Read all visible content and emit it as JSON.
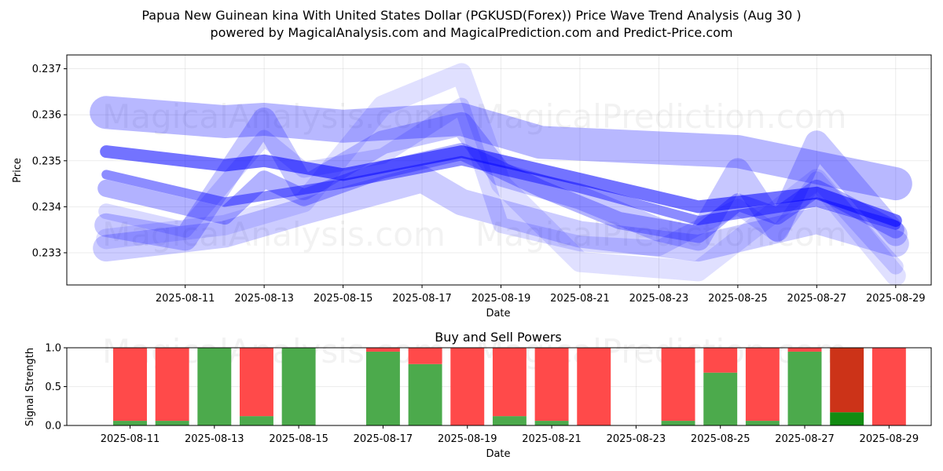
{
  "chart_data": [
    {
      "type": "line",
      "title_line1": "Papua New Guinean kina With United States Dollar (PGKUSD(Forex)) Price Wave Trend Analysis (Aug 30 )",
      "title_line2": "powered by MagicalAnalysis.com and MagicalPrediction.com and Predict-Price.com",
      "xlabel": "Date",
      "ylabel": "Price",
      "xlim": [
        "2025-08-08",
        "2025-08-29.9"
      ],
      "ylim": [
        0.2323,
        0.2373
      ],
      "x_ticks": [
        "2025-08-11",
        "2025-08-13",
        "2025-08-15",
        "2025-08-17",
        "2025-08-19",
        "2025-08-21",
        "2025-08-23",
        "2025-08-25",
        "2025-08-27",
        "2025-08-29"
      ],
      "y_ticks": [
        "0.233",
        "0.234",
        "0.235",
        "0.236",
        "0.237"
      ],
      "grid": true,
      "color": "#0000ff",
      "watermarks": [
        "MagicalAnalysis.com",
        "MagicalPrediction.com",
        "MagicalAnalysis.com",
        "MagicalPrediction.com"
      ],
      "series": [
        {
          "x": [
            "2025-08-09",
            "2025-08-12",
            "2025-08-13",
            "2025-08-15",
            "2025-08-18",
            "2025-08-20",
            "2025-08-25",
            "2025-08-29"
          ],
          "values": [
            0.23605,
            0.23585,
            0.2359,
            0.23575,
            0.2359,
            0.2354,
            0.2352,
            0.2345
          ],
          "width": 42,
          "opacity": 0.28
        },
        {
          "x": [
            "2025-08-09",
            "2025-08-12",
            "2025-08-13",
            "2025-08-15",
            "2025-08-18",
            "2025-08-21",
            "2025-08-24",
            "2025-08-27",
            "2025-08-29"
          ],
          "values": [
            0.2352,
            0.2349,
            0.235,
            0.2347,
            0.2352,
            0.2346,
            0.234,
            0.2343,
            0.2337
          ],
          "width": 16,
          "opacity": 0.55
        },
        {
          "x": [
            "2025-08-09",
            "2025-08-11",
            "2025-08-13",
            "2025-08-14",
            "2025-08-16",
            "2025-08-18",
            "2025-08-19",
            "2025-08-21",
            "2025-08-23",
            "2025-08-24",
            "2025-08-25",
            "2025-08-26",
            "2025-08-27",
            "2025-08-29"
          ],
          "values": [
            0.2336,
            0.2333,
            0.2359,
            0.2344,
            0.2354,
            0.2358,
            0.2347,
            0.2342,
            0.2335,
            0.2333,
            0.2348,
            0.2335,
            0.2354,
            0.2334
          ],
          "width": 30,
          "opacity": 0.22
        },
        {
          "x": [
            "2025-08-09",
            "2025-08-12",
            "2025-08-13",
            "2025-08-14",
            "2025-08-16",
            "2025-08-18",
            "2025-08-20",
            "2025-08-22",
            "2025-08-24",
            "2025-08-25",
            "2025-08-26",
            "2025-08-27",
            "2025-08-29"
          ],
          "values": [
            0.2344,
            0.2338,
            0.2346,
            0.2342,
            0.2348,
            0.2352,
            0.2344,
            0.2337,
            0.2334,
            0.2341,
            0.2338,
            0.2344,
            0.2335
          ],
          "width": 22,
          "opacity": 0.3
        },
        {
          "x": [
            "2025-08-09",
            "2025-08-12",
            "2025-08-14",
            "2025-08-17",
            "2025-08-18",
            "2025-08-21",
            "2025-08-24",
            "2025-08-27",
            "2025-08-29"
          ],
          "values": [
            0.2331,
            0.2334,
            0.2339,
            0.2346,
            0.2341,
            0.2334,
            0.2331,
            0.2337,
            0.2332
          ],
          "width": 34,
          "opacity": 0.2
        },
        {
          "x": [
            "2025-08-09",
            "2025-08-11",
            "2025-08-13",
            "2025-08-14",
            "2025-08-16",
            "2025-08-18",
            "2025-08-19",
            "2025-08-21",
            "2025-08-23",
            "2025-08-25",
            "2025-08-26",
            "2025-08-27",
            "2025-08-29"
          ],
          "values": [
            0.2339,
            0.2335,
            0.2355,
            0.2348,
            0.2351,
            0.2362,
            0.2336,
            0.2332,
            0.2331,
            0.234,
            0.2334,
            0.2346,
            0.2327
          ],
          "width": 20,
          "opacity": 0.15
        },
        {
          "x": [
            "2025-08-09",
            "2025-08-12",
            "2025-08-15",
            "2025-08-18",
            "2025-08-21",
            "2025-08-24",
            "2025-08-27",
            "2025-08-29"
          ],
          "values": [
            0.2347,
            0.2341,
            0.2345,
            0.235,
            0.2344,
            0.2337,
            0.2341,
            0.2336
          ],
          "width": 12,
          "opacity": 0.45
        },
        {
          "x": [
            "2025-08-09",
            "2025-08-12",
            "2025-08-14",
            "2025-08-16",
            "2025-08-18",
            "2025-08-19",
            "2025-08-21",
            "2025-08-24",
            "2025-08-27",
            "2025-08-29"
          ],
          "values": [
            0.2333,
            0.2336,
            0.2341,
            0.2362,
            0.2369,
            0.2345,
            0.2328,
            0.2326,
            0.2346,
            0.2325
          ],
          "width": 26,
          "opacity": 0.12
        }
      ]
    },
    {
      "type": "bar",
      "title": "Buy and Sell Powers",
      "xlabel": "Date",
      "ylabel": "Signal Strength",
      "xlim": [
        "2025-08-09.5",
        "2025-08-30"
      ],
      "ylim": [
        0,
        1.0
      ],
      "x_ticks": [
        "2025-08-11",
        "2025-08-13",
        "2025-08-15",
        "2025-08-17",
        "2025-08-19",
        "2025-08-21",
        "2025-08-23",
        "2025-08-25",
        "2025-08-27",
        "2025-08-29"
      ],
      "y_ticks": [
        "0.0",
        "0.5",
        "1.0"
      ],
      "grid": true,
      "series_names": [
        "Buy",
        "Sell"
      ],
      "colors": {
        "buy": "#4caa4c",
        "sell": "#ff4a4a",
        "buy_strong": "#128c12",
        "sell_strong": "#cc3318"
      },
      "watermarks": [
        "MagicalAnalysis.com",
        "MagicalPrediction.com"
      ],
      "bars": [
        {
          "date": "2025-08-11",
          "buy": 0.06,
          "sell": 0.94
        },
        {
          "date": "2025-08-12",
          "buy": 0.06,
          "sell": 0.94
        },
        {
          "date": "2025-08-13",
          "buy": 1.0,
          "sell": 0.0
        },
        {
          "date": "2025-08-14",
          "buy": 0.12,
          "sell": 0.88
        },
        {
          "date": "2025-08-15",
          "buy": 1.0,
          "sell": 0.0
        },
        {
          "date": "2025-08-17",
          "buy": 0.95,
          "sell": 0.05
        },
        {
          "date": "2025-08-18",
          "buy": 0.79,
          "sell": 0.21
        },
        {
          "date": "2025-08-19",
          "buy": 0.0,
          "sell": 1.0
        },
        {
          "date": "2025-08-20",
          "buy": 0.12,
          "sell": 0.88
        },
        {
          "date": "2025-08-21",
          "buy": 0.06,
          "sell": 0.94
        },
        {
          "date": "2025-08-22",
          "buy": 0.0,
          "sell": 1.0
        },
        {
          "date": "2025-08-24",
          "buy": 0.06,
          "sell": 0.94
        },
        {
          "date": "2025-08-25",
          "buy": 0.68,
          "sell": 0.32
        },
        {
          "date": "2025-08-26",
          "buy": 0.06,
          "sell": 0.94
        },
        {
          "date": "2025-08-27",
          "buy": 0.95,
          "sell": 0.05
        },
        {
          "date": "2025-08-28",
          "buy": 0.17,
          "sell": 0.83,
          "strong": true
        },
        {
          "date": "2025-08-29",
          "buy": 0.0,
          "sell": 1.0
        }
      ]
    }
  ]
}
